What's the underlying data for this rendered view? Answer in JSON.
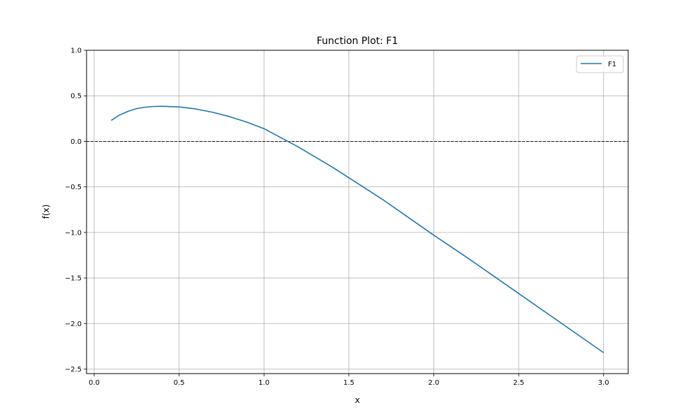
{
  "chart_data": {
    "type": "line",
    "title": "Function Plot: F1",
    "xlabel": "x",
    "ylabel": "f(x)",
    "xlim": [
      -0.045,
      3.145
    ],
    "ylim": [
      -2.55,
      1.0
    ],
    "xticks": [
      0.0,
      0.5,
      1.0,
      1.5,
      2.0,
      2.5,
      3.0
    ],
    "xtick_labels": [
      "0.0",
      "0.5",
      "1.0",
      "1.5",
      "2.0",
      "2.5",
      "3.0"
    ],
    "yticks": [
      1.0,
      0.5,
      0.0,
      -0.5,
      -1.0,
      -1.5,
      -2.0,
      -2.5
    ],
    "ytick_labels": [
      "1.0",
      "0.5",
      "0.0",
      "−0.5",
      "−1.0",
      "−1.5",
      "−2.0",
      "−2.5"
    ],
    "grid": true,
    "hline": {
      "y": 0.0,
      "style": "dashed",
      "color": "#000000"
    },
    "legend": {
      "position": "top-right",
      "entries": [
        "F1"
      ]
    },
    "series": [
      {
        "name": "F1",
        "color": "#1f77b4",
        "x": [
          0.1,
          0.15,
          0.2,
          0.25,
          0.3,
          0.35,
          0.4,
          0.5,
          0.6,
          0.7,
          0.8,
          0.9,
          1.0,
          1.1,
          1.2,
          1.3,
          1.4,
          1.5,
          1.6,
          1.7,
          1.8,
          1.9,
          2.0,
          2.2,
          2.4,
          2.6,
          2.8,
          3.0
        ],
        "y": [
          0.23,
          0.29,
          0.33,
          0.36,
          0.375,
          0.383,
          0.385,
          0.378,
          0.355,
          0.318,
          0.27,
          0.21,
          0.14,
          0.04,
          -0.06,
          -0.17,
          -0.28,
          -0.4,
          -0.52,
          -0.64,
          -0.77,
          -0.9,
          -1.03,
          -1.28,
          -1.54,
          -1.8,
          -2.06,
          -2.32
        ]
      }
    ]
  }
}
